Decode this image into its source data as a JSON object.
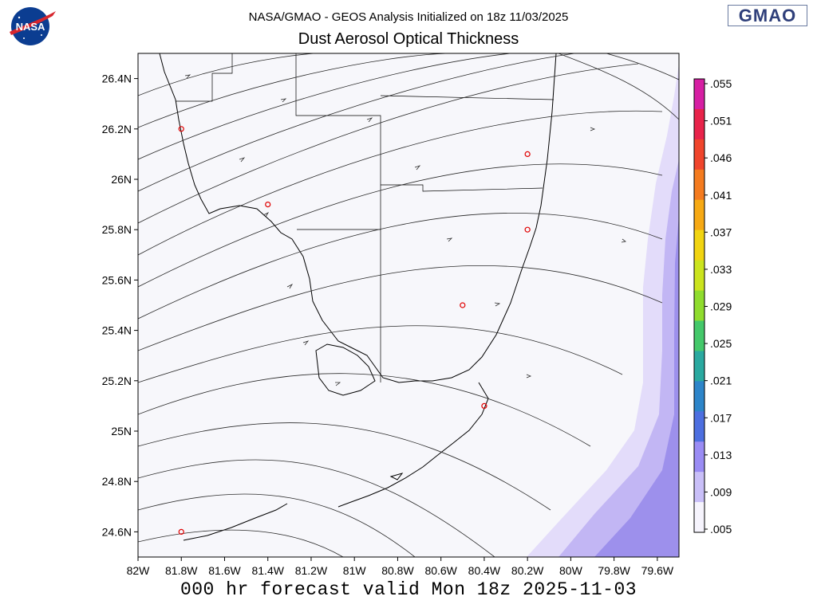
{
  "header": {
    "line1": "NASA/GMAO - GEOS Analysis Initialized on 18z 11/03/2025",
    "line2": "Dust Aerosol Optical Thickness"
  },
  "logos": {
    "left": "NASA",
    "right": "GMAO"
  },
  "footer": {
    "valid": "000 hr forecast valid Mon 18z 2025-11-03"
  },
  "map": {
    "lat_labels": [
      "26.4N",
      "26.2N",
      "26N",
      "25.8N",
      "25.6N",
      "25.4N",
      "25.2N",
      "25N",
      "24.8N",
      "24.6N"
    ],
    "lat_values": [
      26.4,
      26.2,
      26.0,
      25.8,
      25.6,
      25.4,
      25.2,
      25.0,
      24.8,
      24.6
    ],
    "lon_labels": [
      "82W",
      "81.8W",
      "81.6W",
      "81.4W",
      "81.2W",
      "81W",
      "80.8W",
      "80.6W",
      "80.4W",
      "80.2W",
      "80W",
      "79.8W",
      "79.6W"
    ],
    "lon_values": [
      -82.0,
      -81.8,
      -81.6,
      -81.4,
      -81.2,
      -81.0,
      -80.8,
      -80.6,
      -80.4,
      -80.2,
      -80.0,
      -79.8,
      -79.6
    ],
    "lat_range": [
      24.5,
      26.5
    ],
    "lon_range": [
      -82.0,
      -79.5
    ],
    "stations": [
      {
        "lat": 26.2,
        "lon": -81.8
      },
      {
        "lat": 25.9,
        "lon": -81.4
      },
      {
        "lat": 26.1,
        "lon": -80.2
      },
      {
        "lat": 25.8,
        "lon": -80.2
      },
      {
        "lat": 25.5,
        "lon": -80.5
      },
      {
        "lat": 25.1,
        "lon": -80.4
      },
      {
        "lat": 24.6,
        "lon": -81.8
      }
    ]
  },
  "colorbar": {
    "labels": [
      ".055",
      ".051",
      ".046",
      ".041",
      ".037",
      ".033",
      ".029",
      ".025",
      ".021",
      ".017",
      ".013",
      ".009",
      ".005"
    ],
    "colors": [
      "#d61fa3",
      "#e8234a",
      "#f0452c",
      "#f47b1f",
      "#f6a914",
      "#f1d411",
      "#cbe41e",
      "#8fdc2e",
      "#44c86a",
      "#2aa9a0",
      "#2d85c9",
      "#4d6fe0",
      "#9a8cf4",
      "#c9bff8",
      "#f6f4fd"
    ]
  },
  "colors": {
    "background": "#f7f7fb",
    "dust_light": "#e3dcfa",
    "dust_mid": "#c2b6f4",
    "dust_dark": "#9d90ec",
    "station": "#e00000"
  }
}
